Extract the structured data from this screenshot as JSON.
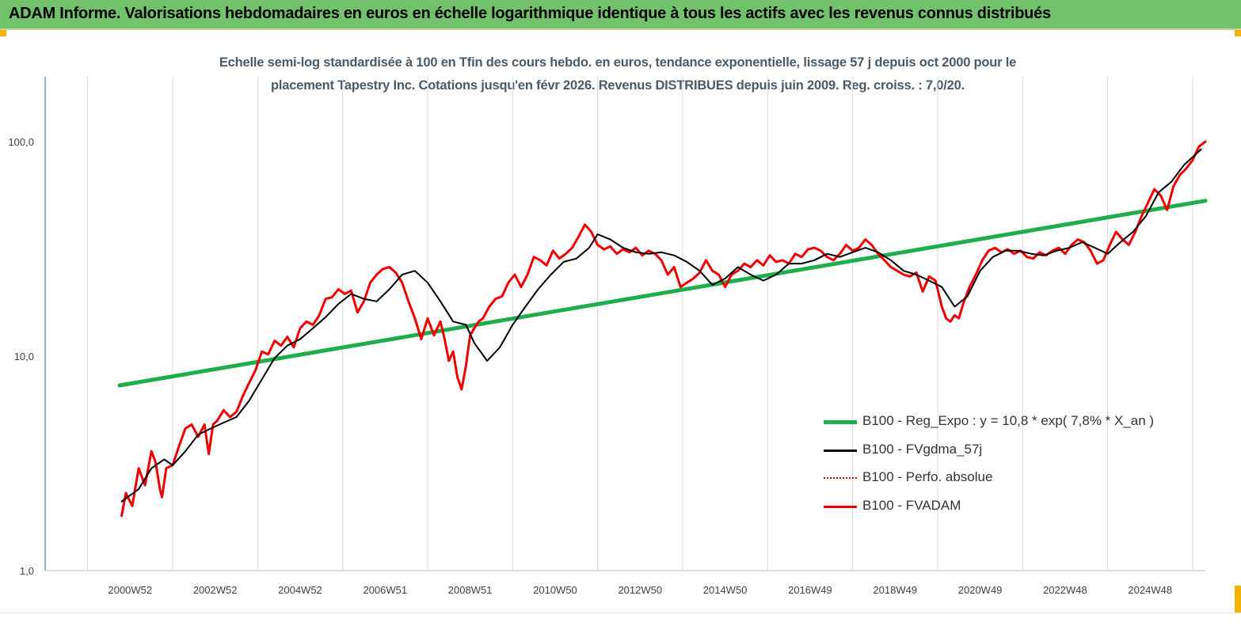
{
  "banner": {
    "title": "ADAM Informe. Valorisations hebdomadaires en euros en échelle logarithmique identique à tous les actifs avec les revenus connus distribués",
    "background": "#72c26b"
  },
  "chart_data": {
    "type": "line",
    "title_line1": "Echelle semi-log standardisée à 100 en Tfin des cours hebdo. en euros, tendance exponentielle, lissage 57 j depuis oct 2000 pour le",
    "title_line2": "placement Tapestry Inc. Cotations jusqu'en févr 2026. Revenus DISTRIBUES depuis juin 2009. Reg. croiss. : 7,0/20.",
    "y_scale": "log",
    "ylim": [
      1,
      200
    ],
    "y_ticks": [
      {
        "value": 1,
        "label": "1,0"
      },
      {
        "value": 10,
        "label": "10,0"
      },
      {
        "value": 100,
        "label": "100,0"
      }
    ],
    "xlim": [
      1999.0,
      2026.3
    ],
    "x_ticks": [
      {
        "year": 2001.0,
        "label": "2000W52"
      },
      {
        "year": 2003.0,
        "label": "2002W52"
      },
      {
        "year": 2005.0,
        "label": "2004W52"
      },
      {
        "year": 2007.0,
        "label": "2006W51"
      },
      {
        "year": 2009.0,
        "label": "2008W51"
      },
      {
        "year": 2011.0,
        "label": "2010W50"
      },
      {
        "year": 2013.0,
        "label": "2012W50"
      },
      {
        "year": 2015.0,
        "label": "2014W50"
      },
      {
        "year": 2017.0,
        "label": "2016W49"
      },
      {
        "year": 2019.0,
        "label": "2018W49"
      },
      {
        "year": 2021.0,
        "label": "2020W49"
      },
      {
        "year": 2023.0,
        "label": "2022W48"
      },
      {
        "year": 2025.0,
        "label": "2024W48"
      }
    ],
    "grid": "vertical",
    "legend_position": "bottom-right",
    "series": [
      {
        "name": "B100 - Reg_Expo : y = 10,8 *  exp( 7,8% *  X_an )",
        "color": "#1fae4b",
        "style": "solid",
        "x": [
          2000.75,
          2026.3
        ],
        "values": [
          7.3,
          53
        ]
      },
      {
        "name": "B100 - FVgdma_57j",
        "color": "#000000",
        "style": "solid",
        "x": [
          2000.8,
          2001.2,
          2001.5,
          2001.8,
          2002.0,
          2002.3,
          2002.6,
          2002.9,
          2003.2,
          2003.5,
          2003.8,
          2004.1,
          2004.4,
          2004.7,
          2005.0,
          2005.3,
          2005.6,
          2005.9,
          2006.2,
          2006.5,
          2006.8,
          2007.1,
          2007.4,
          2007.7,
          2008.0,
          2008.3,
          2008.6,
          2008.9,
          2009.1,
          2009.4,
          2009.7,
          2010.0,
          2010.3,
          2010.6,
          2010.9,
          2011.2,
          2011.5,
          2011.8,
          2012.0,
          2012.3,
          2012.6,
          2012.9,
          2013.2,
          2013.5,
          2013.8,
          2014.1,
          2014.4,
          2014.7,
          2015.0,
          2015.3,
          2015.6,
          2015.9,
          2016.2,
          2016.5,
          2016.8,
          2017.1,
          2017.4,
          2017.7,
          2018.0,
          2018.3,
          2018.6,
          2018.9,
          2019.2,
          2019.5,
          2019.8,
          2020.1,
          2020.4,
          2020.7,
          2021.0,
          2021.3,
          2021.6,
          2021.9,
          2022.2,
          2022.5,
          2022.8,
          2023.1,
          2023.4,
          2023.7,
          2024.0,
          2024.3,
          2024.6,
          2024.9,
          2025.2,
          2025.5,
          2025.8,
          2026.2
        ],
        "values": [
          2.1,
          2.4,
          3.0,
          3.3,
          3.1,
          3.6,
          4.3,
          4.6,
          4.9,
          5.2,
          6.2,
          7.8,
          9.8,
          11.2,
          12.0,
          13.5,
          15.2,
          17.5,
          19.5,
          18.5,
          18.0,
          20.5,
          24.0,
          25.0,
          22.0,
          18.0,
          14.5,
          14.0,
          11.5,
          9.5,
          11.0,
          14.0,
          17.0,
          20.5,
          24.0,
          27.5,
          28.5,
          32.0,
          37.0,
          35.0,
          32.0,
          30.5,
          30.0,
          30.5,
          29.5,
          27.5,
          25.0,
          21.5,
          23.0,
          26.0,
          24.0,
          22.5,
          24.0,
          27.0,
          27.0,
          28.0,
          30.0,
          29.0,
          30.5,
          32.0,
          30.5,
          28.0,
          25.0,
          24.0,
          22.5,
          21.0,
          17.0,
          19.0,
          25.0,
          29.0,
          31.0,
          31.0,
          30.0,
          29.5,
          31.0,
          32.0,
          34.0,
          32.0,
          30.0,
          34.0,
          38.0,
          45.0,
          58.0,
          65.0,
          78.0,
          92.0
        ]
      },
      {
        "name": "B100 - Perfo. absolue",
        "color": "#e0000b",
        "style": "dotted",
        "x": [],
        "values": []
      },
      {
        "name": "B100 - FVADAM",
        "color": "#f00000",
        "style": "solid",
        "x": [
          2000.8,
          2000.9,
          2001.05,
          2001.2,
          2001.35,
          2001.5,
          2001.6,
          2001.7,
          2001.75,
          2001.85,
          2002.0,
          2002.15,
          2002.3,
          2002.45,
          2002.6,
          2002.75,
          2002.85,
          2002.95,
          2003.05,
          2003.2,
          2003.35,
          2003.5,
          2003.65,
          2003.8,
          2003.95,
          2004.1,
          2004.25,
          2004.4,
          2004.55,
          2004.7,
          2004.85,
          2005.0,
          2005.15,
          2005.3,
          2005.45,
          2005.6,
          2005.75,
          2005.9,
          2006.05,
          2006.2,
          2006.35,
          2006.5,
          2006.65,
          2006.8,
          2006.95,
          2007.1,
          2007.25,
          2007.4,
          2007.55,
          2007.7,
          2007.85,
          2008.0,
          2008.15,
          2008.3,
          2008.4,
          2008.5,
          2008.6,
          2008.7,
          2008.8,
          2008.9,
          2009.0,
          2009.1,
          2009.2,
          2009.3,
          2009.45,
          2009.6,
          2009.75,
          2009.9,
          2010.05,
          2010.2,
          2010.35,
          2010.5,
          2010.65,
          2010.8,
          2010.95,
          2011.1,
          2011.25,
          2011.4,
          2011.55,
          2011.7,
          2011.85,
          2012.0,
          2012.15,
          2012.3,
          2012.45,
          2012.6,
          2012.75,
          2012.9,
          2013.05,
          2013.2,
          2013.35,
          2013.5,
          2013.65,
          2013.8,
          2013.95,
          2014.1,
          2014.25,
          2014.4,
          2014.55,
          2014.7,
          2014.85,
          2015.0,
          2015.15,
          2015.3,
          2015.45,
          2015.6,
          2015.75,
          2015.9,
          2016.05,
          2016.2,
          2016.35,
          2016.5,
          2016.65,
          2016.8,
          2016.95,
          2017.1,
          2017.25,
          2017.4,
          2017.55,
          2017.7,
          2017.85,
          2018.0,
          2018.15,
          2018.3,
          2018.45,
          2018.6,
          2018.75,
          2018.9,
          2019.05,
          2019.2,
          2019.35,
          2019.5,
          2019.65,
          2019.8,
          2019.95,
          2020.1,
          2020.2,
          2020.3,
          2020.4,
          2020.5,
          2020.6,
          2020.75,
          2020.9,
          2021.05,
          2021.2,
          2021.35,
          2021.5,
          2021.65,
          2021.8,
          2021.95,
          2022.1,
          2022.25,
          2022.4,
          2022.55,
          2022.7,
          2022.85,
          2023.0,
          2023.15,
          2023.3,
          2023.45,
          2023.6,
          2023.75,
          2023.9,
          2024.05,
          2024.2,
          2024.35,
          2024.5,
          2024.65,
          2024.8,
          2024.95,
          2025.1,
          2025.25,
          2025.4,
          2025.55,
          2025.7,
          2025.85,
          2026.0,
          2026.15,
          2026.3
        ],
        "values": [
          1.8,
          2.3,
          2.0,
          3.0,
          2.5,
          3.6,
          3.2,
          2.4,
          2.2,
          3.0,
          3.1,
          3.8,
          4.6,
          4.8,
          4.2,
          4.8,
          3.5,
          4.8,
          5.0,
          5.6,
          5.2,
          5.5,
          6.5,
          7.5,
          8.6,
          10.5,
          10.2,
          11.8,
          11.2,
          12.3,
          11.0,
          13.5,
          14.5,
          14.0,
          15.5,
          18.5,
          18.8,
          20.5,
          19.5,
          20.2,
          16.0,
          18.0,
          22.0,
          24.0,
          25.5,
          26.0,
          24.5,
          22.0,
          18.0,
          15.0,
          12.0,
          15.0,
          12.5,
          14.5,
          12.0,
          9.5,
          10.5,
          8.0,
          7.0,
          9.0,
          12.5,
          13.5,
          14.5,
          15.0,
          17.0,
          18.5,
          19.0,
          22.0,
          24.0,
          21.0,
          24.0,
          29.0,
          28.0,
          26.5,
          31.0,
          28.5,
          30.0,
          32.0,
          36.0,
          41.0,
          38.0,
          33.0,
          31.5,
          32.5,
          30.0,
          31.5,
          30.5,
          32.0,
          29.5,
          31.0,
          30.0,
          28.0,
          24.0,
          26.0,
          21.0,
          22.0,
          23.0,
          24.5,
          28.0,
          25.0,
          24.0,
          21.0,
          24.0,
          25.0,
          27.0,
          26.0,
          28.0,
          26.5,
          29.5,
          27.5,
          28.0,
          27.0,
          30.0,
          29.0,
          31.5,
          32.0,
          31.0,
          29.0,
          28.0,
          30.0,
          33.0,
          31.0,
          32.0,
          35.0,
          33.0,
          30.0,
          28.0,
          26.0,
          25.0,
          24.0,
          23.5,
          24.5,
          20.0,
          23.5,
          22.5,
          17.0,
          15.0,
          14.5,
          15.5,
          15.0,
          17.5,
          21.0,
          24.0,
          28.0,
          31.0,
          32.0,
          30.5,
          31.5,
          30.0,
          31.0,
          29.0,
          28.5,
          30.5,
          29.5,
          31.0,
          32.0,
          30.0,
          33.0,
          35.0,
          34.0,
          31.0,
          27.0,
          28.0,
          33.0,
          38.0,
          35.0,
          33.0,
          38.0,
          45.0,
          52.0,
          60.0,
          56.0,
          48.0,
          62.0,
          70.0,
          75.0,
          82.0,
          95.0,
          100.0
        ]
      }
    ]
  }
}
